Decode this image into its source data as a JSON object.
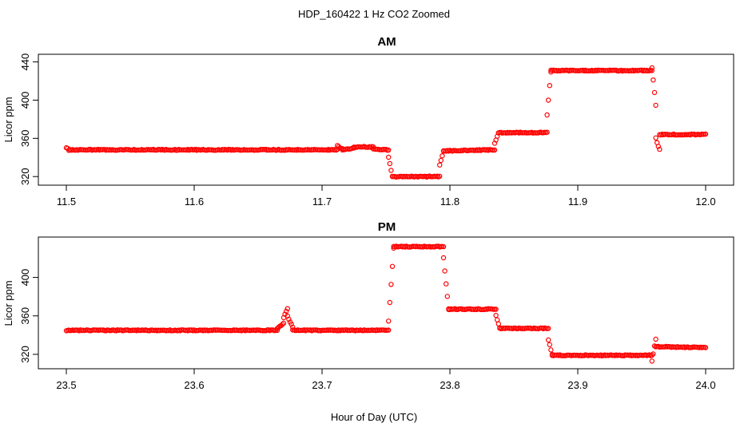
{
  "figure": {
    "title": "HDP_160422  1 Hz CO2 Zoomed",
    "xlabel": "Hour of Day (UTC)"
  },
  "colors": {
    "points": "#ff0000",
    "axis": "#000000"
  },
  "chart_data": [
    {
      "type": "scatter",
      "title": "AM",
      "ylabel": "Licor ppm",
      "xlim": [
        11.5,
        12.0
      ],
      "ylim": [
        316,
        443
      ],
      "xticks": [
        "11.5",
        "11.6",
        "11.7",
        "11.8",
        "11.9",
        "12.0"
      ],
      "yticks": [
        "320",
        "360",
        "400",
        "440"
      ],
      "grid": false,
      "segments": [
        {
          "x": [
            11.5,
            11.502
          ],
          "y": [
            350,
            348
          ]
        },
        {
          "x": [
            11.502,
            11.705
          ],
          "y": [
            348,
            348
          ]
        },
        {
          "x": [
            11.705,
            11.712
          ],
          "y": [
            348,
            348
          ]
        },
        {
          "x": [
            11.712,
            11.716
          ],
          "y": [
            352,
            349
          ]
        },
        {
          "x": [
            11.716,
            11.725
          ],
          "y": [
            348,
            350
          ]
        },
        {
          "x": [
            11.725,
            11.74
          ],
          "y": [
            351,
            351
          ]
        },
        {
          "x": [
            11.74,
            11.752
          ],
          "y": [
            349,
            348
          ]
        },
        {
          "x": [
            11.752,
            11.755
          ],
          "y": [
            340,
            320
          ]
        },
        {
          "x": [
            11.755,
            11.792
          ],
          "y": [
            320,
            320
          ]
        },
        {
          "x": [
            11.792,
            11.795
          ],
          "y": [
            332,
            347
          ]
        },
        {
          "x": [
            11.795,
            11.835
          ],
          "y": [
            347,
            348
          ]
        },
        {
          "x": [
            11.835,
            11.838
          ],
          "y": [
            355,
            366
          ]
        },
        {
          "x": [
            11.838,
            11.876
          ],
          "y": [
            366,
            366
          ]
        },
        {
          "x": [
            11.876,
            11.879
          ],
          "y": [
            385,
            430
          ]
        },
        {
          "x": [
            11.879,
            11.958
          ],
          "y": [
            431,
            431
          ]
        },
        {
          "x": [
            11.958,
            11.961
          ],
          "y": [
            434,
            395
          ]
        },
        {
          "x": [
            11.961,
            11.964
          ],
          "y": [
            360,
            348
          ]
        },
        {
          "x": [
            11.964,
            12.0
          ],
          "y": [
            364,
            364
          ]
        }
      ]
    },
    {
      "type": "scatter",
      "title": "PM",
      "ylabel": "Licor ppm",
      "xlim": [
        23.5,
        24.0
      ],
      "ylim": [
        310,
        437
      ],
      "xticks": [
        "23.5",
        "23.6",
        "23.7",
        "23.8",
        "23.9",
        "24.0"
      ],
      "yticks": [
        "320",
        "360",
        "400"
      ],
      "grid": false,
      "segments": [
        {
          "x": [
            23.5,
            23.665
          ],
          "y": [
            345,
            345
          ]
        },
        {
          "x": [
            23.665,
            23.67
          ],
          "y": [
            347,
            352
          ]
        },
        {
          "x": [
            23.67,
            23.673
          ],
          "y": [
            358,
            368
          ]
        },
        {
          "x": [
            23.673,
            23.677
          ],
          "y": [
            360,
            348
          ]
        },
        {
          "x": [
            23.677,
            23.752
          ],
          "y": [
            345,
            345
          ]
        },
        {
          "x": [
            23.752,
            23.756
          ],
          "y": [
            355,
            430
          ]
        },
        {
          "x": [
            23.756,
            23.795
          ],
          "y": [
            432,
            432
          ]
        },
        {
          "x": [
            23.795,
            23.799
          ],
          "y": [
            420,
            367
          ]
        },
        {
          "x": [
            23.799,
            23.836
          ],
          "y": [
            367,
            367
          ]
        },
        {
          "x": [
            23.836,
            23.839
          ],
          "y": [
            360,
            348
          ]
        },
        {
          "x": [
            23.839,
            23.877
          ],
          "y": [
            347,
            347
          ]
        },
        {
          "x": [
            23.877,
            23.88
          ],
          "y": [
            335,
            320
          ]
        },
        {
          "x": [
            23.88,
            23.958
          ],
          "y": [
            319,
            319
          ]
        },
        {
          "x": [
            23.958,
            23.961
          ],
          "y": [
            313,
            336
          ]
        },
        {
          "x": [
            23.961,
            24.0
          ],
          "y": [
            328,
            327
          ]
        }
      ]
    }
  ]
}
